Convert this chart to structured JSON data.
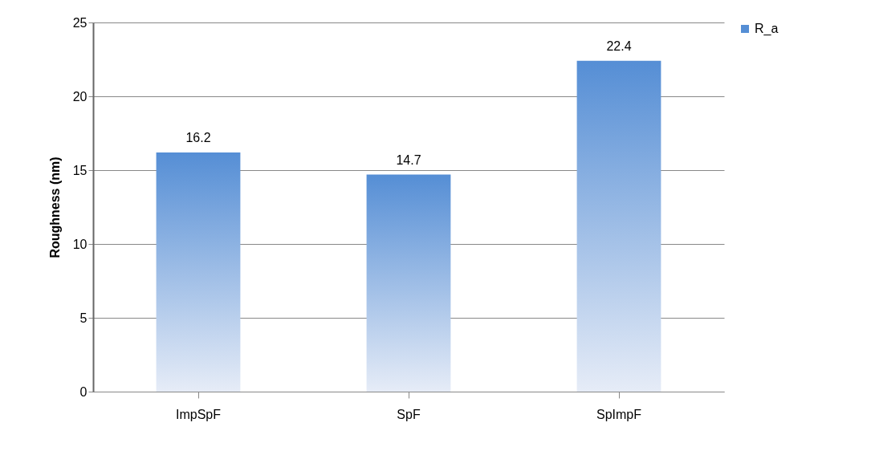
{
  "chart_data": {
    "type": "bar",
    "ylabel": "Roughness (nm)",
    "categories": [
      "ImpSpF",
      "SpF",
      "SpImpF"
    ],
    "series": [
      {
        "name": "R_a",
        "color": "#558ed5",
        "values": [
          16.2,
          14.7,
          22.4
        ]
      }
    ],
    "ylim": [
      0,
      25
    ],
    "yticks": [
      0,
      5,
      10,
      15,
      20,
      25
    ],
    "grid": "y",
    "legend": "right",
    "data_labels": true
  }
}
